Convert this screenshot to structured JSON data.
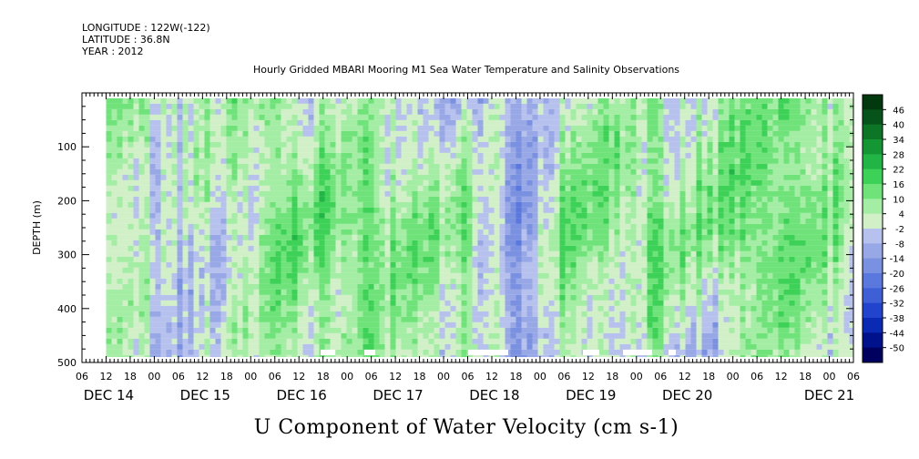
{
  "header": {
    "longitude": "LONGITUDE : 122W(-122)",
    "latitude": "LATITUDE : 36.8N",
    "year": "YEAR : 2012",
    "title": "Hourly Gridded MBARI Mooring M1 Sea Water Temperature and Salinity Observations"
  },
  "chart_data": {
    "type": "heatmap",
    "title": "Hourly Gridded MBARI Mooring M1 Sea Water Temperature and Salinity Observations",
    "xlabel": "U Component of Water Velocity (cm s-1)",
    "ylabel": "DEPTH (m)",
    "ylim": [
      500,
      0
    ],
    "y_ticks": [
      100,
      200,
      300,
      400,
      500
    ],
    "y_tick_labels": [
      "100",
      "200",
      "300",
      "400",
      "500"
    ],
    "x_range": [
      "2012-12-13T06:00",
      "2012-12-21T06:00"
    ],
    "x_tick_labels": [
      "06",
      "12",
      "18",
      "00",
      "06",
      "12",
      "18",
      "00",
      "06",
      "12",
      "18",
      "00",
      "06",
      "12",
      "18",
      "00",
      "06",
      "12",
      "18",
      "00",
      "06",
      "12",
      "18",
      "00",
      "06",
      "12",
      "18",
      "00",
      "06",
      "12",
      "18",
      "00",
      "06"
    ],
    "x_day_labels": [
      "DEC 14",
      "DEC 15",
      "DEC 16",
      "DEC 17",
      "DEC 18",
      "DEC 19",
      "DEC 20",
      "DEC 21"
    ],
    "data_extent": {
      "time_start": "2012-12-13T12:00",
      "time_end": "2012-12-21T06:00",
      "depth_top": 10,
      "depth_bottom": 490
    },
    "colorbar": {
      "levels": [
        -50,
        -44,
        -38,
        -32,
        -26,
        -20,
        -14,
        -8,
        -2,
        4,
        10,
        16,
        22,
        28,
        34,
        40,
        46
      ],
      "labels": [
        "46",
        "40",
        "34",
        "28",
        "22",
        "16",
        "10",
        "4",
        "-2",
        "-8",
        "-14",
        "-20",
        "-26",
        "-32",
        "-38",
        "-44",
        "-50"
      ],
      "colors": [
        "#00005e",
        "#00118c",
        "#0a2ab4",
        "#2244cc",
        "#3f5fd6",
        "#5a78dd",
        "#7a90e0",
        "#98a8e6",
        "#b7c1ee",
        "#d2f0c8",
        "#a3eda4",
        "#6fe37a",
        "#3ed157",
        "#20b544",
        "#159634",
        "#0d7626",
        "#07541a",
        "#02380e"
      ]
    },
    "grid": false,
    "legend": "colorbar right",
    "field_description_values": {
      "columns_summary_by_time": [
        {
          "time": "2012-12-13T12:00",
          "surface": 10,
          "mid": 6,
          "deep": 4
        },
        {
          "time": "2012-12-14T06:00",
          "surface": 4,
          "mid": -6,
          "deep": -4
        },
        {
          "time": "2012-12-15T12:00",
          "surface": 4,
          "mid": 12,
          "deep": 6
        },
        {
          "time": "2012-12-16T06:00",
          "surface": 2,
          "mid": 14,
          "deep": 6
        },
        {
          "time": "2012-12-16T18:00",
          "surface": -4,
          "mid": 8,
          "deep": 2
        },
        {
          "time": "2012-12-17T06:00",
          "surface": -4,
          "mid": 10,
          "deep": 6
        },
        {
          "time": "2012-12-17T18:00",
          "surface": -8,
          "mid": -12,
          "deep": -14
        },
        {
          "time": "2012-12-18T06:00",
          "surface": 4,
          "mid": 12,
          "deep": 8
        },
        {
          "time": "2012-12-18T18:00",
          "surface": 6,
          "mid": 10,
          "deep": -8
        },
        {
          "time": "2012-12-19T06:00",
          "surface": 2,
          "mid": 12,
          "deep": 4
        },
        {
          "time": "2012-12-19T18:00",
          "surface": 6,
          "mid": 10,
          "deep": -6
        },
        {
          "time": "2012-12-20T12:00",
          "surface": 8,
          "mid": 14,
          "deep": 6
        },
        {
          "time": "2012-12-21T06:00",
          "surface": 10,
          "mid": 4,
          "deep": 2
        }
      ]
    }
  }
}
